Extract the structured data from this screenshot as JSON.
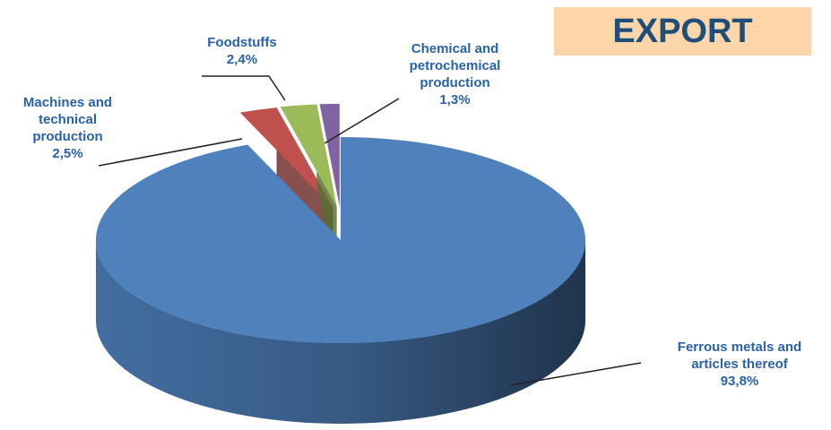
{
  "chart_data": {
    "type": "pie",
    "title": "EXPORT",
    "categories": [
      "Ferrous metals and articles thereof",
      "Machines and technical production",
      "Foodstuffs",
      "Chemical and petrochemical production"
    ],
    "values": [
      93.8,
      2.5,
      2.4,
      1.3
    ],
    "value_labels": [
      "93,8%",
      "2,5%",
      "2,4%",
      "1,3%"
    ],
    "colors": [
      "#4f81bd",
      "#c0504d",
      "#9bbb59",
      "#8064a2"
    ]
  }
}
